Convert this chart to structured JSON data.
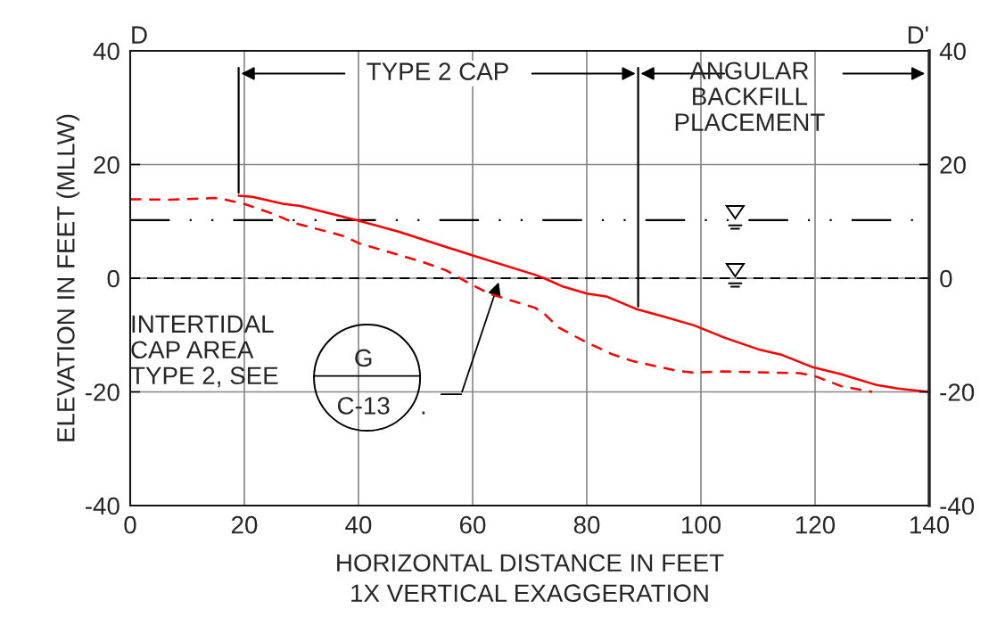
{
  "chart_data": {
    "type": "line",
    "xlabel": "HORIZONTAL DISTANCE IN FEET\n1X VERTICAL EXAGGERATION",
    "ylabel": "ELEVATION IN FEET (MLLW)",
    "series": [
      {
        "color": "#ff0000",
        "line_style": "solid",
        "x": [
          19,
          21.4,
          26.7,
          29.8,
          39.7,
          47,
          60,
          70.9,
          72.5,
          75.9,
          80,
          83.4,
          88.6,
          93.3,
          98.8,
          104.2,
          110,
          114.2,
          119.4,
          124.6,
          130.8,
          134.5,
          140
        ],
        "values": [
          14.5,
          14.3,
          13.1,
          12.7,
          10.2,
          8.2,
          4.0,
          0.6,
          0,
          -1.5,
          -2.7,
          -3.2,
          -5.4,
          -6.7,
          -8.3,
          -10.5,
          -12.5,
          -13.5,
          -15.6,
          -16.9,
          -18.8,
          -19.4,
          -20
        ]
      },
      {
        "color": "#ff0000",
        "line_style": "dashed",
        "x": [
          0,
          6.9,
          14.7,
          16.3,
          19.9,
          25.1,
          28.8,
          37.1,
          40.2,
          51.1,
          55.3,
          59,
          63.1,
          70.9,
          72.5,
          75.1,
          79.8,
          84.5,
          88.1,
          95.9,
          98.5,
          103.8,
          117.3,
          119.9,
          124.6,
          130
        ],
        "values": [
          13.9,
          13.8,
          14.1,
          13.9,
          13.1,
          11.3,
          9.7,
          7.5,
          6.1,
          2.9,
          1.4,
          -0.7,
          -2.8,
          -5.2,
          -6.2,
          -8.7,
          -11.2,
          -13.4,
          -14.6,
          -16.3,
          -16.6,
          -16.4,
          -16.7,
          -17.2,
          -19,
          -20
        ]
      }
    ],
    "xlim": [
      0,
      140
    ],
    "xticks": [
      0,
      20,
      40,
      60,
      80,
      100,
      120,
      140
    ],
    "ylim": [
      -40,
      40
    ],
    "yticks": [
      -40,
      -20,
      0,
      20,
      40
    ],
    "y2lim": [
      -40,
      40
    ],
    "y2ticks": [
      -40,
      -20,
      0,
      20,
      40
    ],
    "grid": true,
    "ref_lines": [
      {
        "axis": "y",
        "value": 10.2,
        "color": "#000000",
        "line_style": "dashdotdot"
      },
      {
        "axis": "y",
        "value": 0,
        "color": "#000000",
        "line_style": "dashed"
      },
      {
        "axis": "x",
        "value": 19,
        "color": "#000000",
        "line_style": "solid"
      },
      {
        "axis": "x",
        "value": 89,
        "color": "#000000",
        "line_style": "solid"
      }
    ],
    "annotations": [
      "D",
      "D'",
      "INTERTIDAL\nCAP AREA\nTYPE 2, SEE",
      "G",
      "C-13",
      ".",
      "TYPE 2 CAP",
      "ANGULAR\nBACKFILL\nPLACEMENT"
    ]
  }
}
